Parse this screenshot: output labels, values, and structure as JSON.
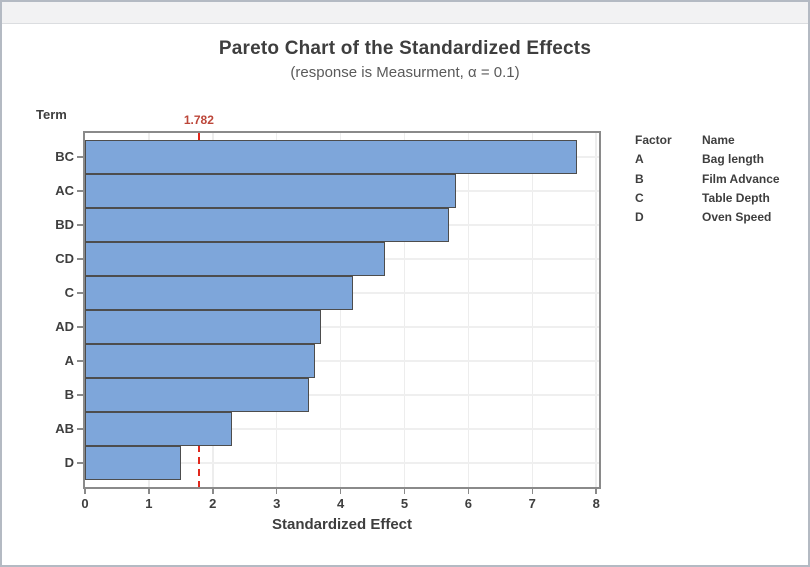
{
  "window": {
    "header_strip": ""
  },
  "chart_data": {
    "type": "bar",
    "orientation": "horizontal",
    "title": "Pareto Chart of the Standardized Effects",
    "subtitle": "(response is Measurment, α = 0.1)",
    "xlabel": "Standardized Effect",
    "ylabel": "Term",
    "categories": [
      "BC",
      "AC",
      "BD",
      "CD",
      "C",
      "AD",
      "A",
      "B",
      "AB",
      "D"
    ],
    "values": [
      7.7,
      5.8,
      5.7,
      4.7,
      4.2,
      3.7,
      3.6,
      3.5,
      2.3,
      1.5
    ],
    "xlim": [
      0,
      8.07
    ],
    "xticks": [
      0,
      1,
      2,
      3,
      4,
      5,
      6,
      7,
      8
    ],
    "grid": {
      "vertical": "at integer ticks",
      "horizontal": "at bar centers"
    },
    "reference_line": {
      "value": 1.782,
      "label": "1.782"
    },
    "legend": {
      "position": "right",
      "headers": [
        "Factor",
        "Name"
      ],
      "rows": [
        [
          "A",
          "Bag length"
        ],
        [
          "B",
          "Film Advance"
        ],
        [
          "C",
          "Table Depth"
        ],
        [
          "D",
          "Oven Speed"
        ]
      ]
    },
    "colors": {
      "bar_fill": "#7ea6da",
      "bar_border": "#4d4d4d",
      "reference_line": "#e1281c",
      "reference_label": "#bc4639",
      "gridline": "#ededed",
      "axis_frame": "#8a8a8a",
      "title_text": "#3e3e3e",
      "subtitle_text": "#5a5a5a"
    }
  }
}
